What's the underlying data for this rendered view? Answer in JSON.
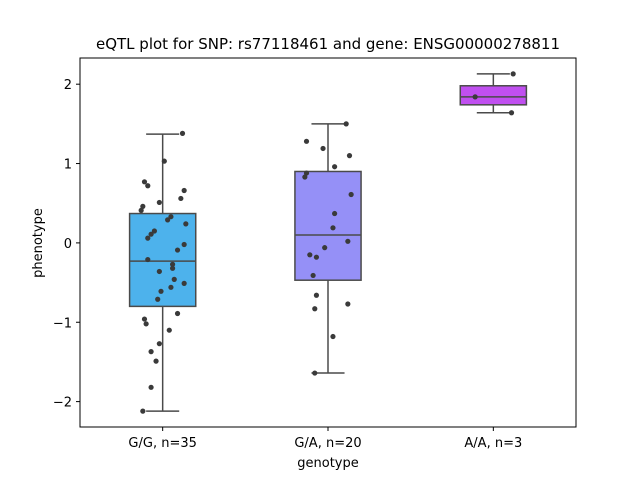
{
  "chart_data": {
    "type": "box",
    "title": "eQTL plot for SNP: rs77118461 and gene: ENSG00000278811",
    "xlabel": "genotype",
    "ylabel": "phenotype",
    "ylim": [
      -2.32,
      2.33
    ],
    "yticks": [
      -2,
      -1,
      0,
      1,
      2
    ],
    "ytick_labels": [
      "−2",
      "−1",
      "0",
      "1",
      "2"
    ],
    "grid": false,
    "categories": [
      "G/G, n=35",
      "G/A, n=20",
      "A/A, n=3"
    ],
    "series": [
      {
        "category": "G/G, n=35",
        "color": "#4db2ec",
        "box": {
          "whisker_low": -2.12,
          "q1": -0.8,
          "median": -0.23,
          "q3": 0.37,
          "whisker_high": 1.37
        },
        "points": [
          {
            "dx": 0.12,
            "y": 1.38
          },
          {
            "dx": 0.01,
            "y": 1.03
          },
          {
            "dx": -0.11,
            "y": 0.77
          },
          {
            "dx": -0.09,
            "y": 0.72
          },
          {
            "dx": 0.13,
            "y": 0.66
          },
          {
            "dx": 0.11,
            "y": 0.56
          },
          {
            "dx": -0.02,
            "y": 0.51
          },
          {
            "dx": -0.12,
            "y": 0.46
          },
          {
            "dx": -0.13,
            "y": 0.41
          },
          {
            "dx": 0.05,
            "y": 0.33
          },
          {
            "dx": 0.03,
            "y": 0.29
          },
          {
            "dx": 0.14,
            "y": 0.24
          },
          {
            "dx": -0.05,
            "y": 0.15
          },
          {
            "dx": -0.07,
            "y": 0.11
          },
          {
            "dx": -0.09,
            "y": 0.06
          },
          {
            "dx": 0.13,
            "y": -0.02
          },
          {
            "dx": 0.09,
            "y": -0.09
          },
          {
            "dx": -0.09,
            "y": -0.21
          },
          {
            "dx": 0.06,
            "y": -0.27
          },
          {
            "dx": 0.06,
            "y": -0.32
          },
          {
            "dx": -0.02,
            "y": -0.36
          },
          {
            "dx": 0.07,
            "y": -0.46
          },
          {
            "dx": 0.13,
            "y": -0.51
          },
          {
            "dx": 0.05,
            "y": -0.56
          },
          {
            "dx": -0.01,
            "y": -0.61
          },
          {
            "dx": -0.03,
            "y": -0.71
          },
          {
            "dx": 0.09,
            "y": -0.89
          },
          {
            "dx": -0.11,
            "y": -0.96
          },
          {
            "dx": -0.1,
            "y": -1.02
          },
          {
            "dx": 0.04,
            "y": -1.1
          },
          {
            "dx": -0.02,
            "y": -1.27
          },
          {
            "dx": -0.07,
            "y": -1.37
          },
          {
            "dx": -0.04,
            "y": -1.49
          },
          {
            "dx": -0.07,
            "y": -1.82
          },
          {
            "dx": -0.12,
            "y": -2.12
          }
        ]
      },
      {
        "category": "G/A, n=20",
        "color": "#9590f7",
        "box": {
          "whisker_low": -1.64,
          "q1": -0.47,
          "median": 0.1,
          "q3": 0.9,
          "whisker_high": 1.5
        },
        "points": [
          {
            "dx": 0.11,
            "y": 1.5
          },
          {
            "dx": -0.13,
            "y": 1.28
          },
          {
            "dx": -0.03,
            "y": 1.19
          },
          {
            "dx": 0.13,
            "y": 1.1
          },
          {
            "dx": 0.04,
            "y": 0.96
          },
          {
            "dx": -0.13,
            "y": 0.88
          },
          {
            "dx": -0.14,
            "y": 0.83
          },
          {
            "dx": 0.14,
            "y": 0.61
          },
          {
            "dx": 0.04,
            "y": 0.37
          },
          {
            "dx": 0.03,
            "y": 0.19
          },
          {
            "dx": 0.12,
            "y": 0.02
          },
          {
            "dx": -0.02,
            "y": -0.06
          },
          {
            "dx": -0.11,
            "y": -0.15
          },
          {
            "dx": -0.07,
            "y": -0.18
          },
          {
            "dx": -0.09,
            "y": -0.41
          },
          {
            "dx": -0.07,
            "y": -0.66
          },
          {
            "dx": 0.12,
            "y": -0.77
          },
          {
            "dx": -0.08,
            "y": -0.83
          },
          {
            "dx": 0.03,
            "y": -1.18
          },
          {
            "dx": -0.08,
            "y": -1.64
          }
        ]
      },
      {
        "category": "A/A, n=3",
        "color": "#c04ff0",
        "box": {
          "whisker_low": 1.64,
          "q1": 1.74,
          "median": 1.84,
          "q3": 1.98,
          "whisker_high": 2.13
        },
        "points": [
          {
            "dx": 0.12,
            "y": 2.13
          },
          {
            "dx": -0.11,
            "y": 1.84
          },
          {
            "dx": 0.11,
            "y": 1.64
          }
        ]
      }
    ]
  }
}
